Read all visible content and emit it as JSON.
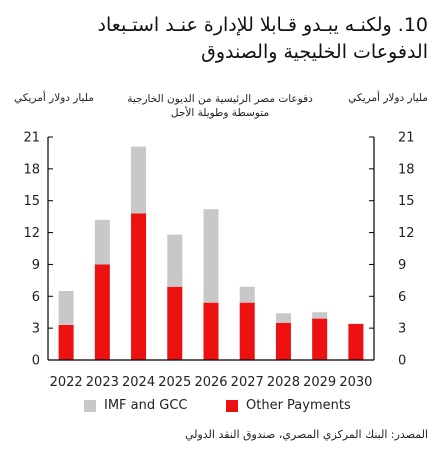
{
  "title": {
    "line1": "10. ولكنـه يبـدو قـابلا للإدارة عنـد استـبعاد",
    "line2": "الدفوعات الخليجية والصندوق"
  },
  "subtitle": {
    "line1": "دفوعات مصر الرئيسية من الديون الخارجية",
    "line2": "متوسطة وطويلة الأجل"
  },
  "unit_left": "مليار دولار أمريكي",
  "unit_right": "مليار دولار أمريكي",
  "source": "المصدر: البنك المركزي المصري، صندوق النقد الدولي",
  "colors": {
    "imf_gcc": "#c8c8c8",
    "other": "#ee1111",
    "axis": "#000000"
  },
  "chart_data": {
    "type": "bar",
    "stacked": true,
    "categories": [
      "2022",
      "2023",
      "2024",
      "2025",
      "2026",
      "2027",
      "2028",
      "2029",
      "2030"
    ],
    "series": [
      {
        "name": "Other Payments",
        "values": [
          3.3,
          9.0,
          13.8,
          6.9,
          5.4,
          5.4,
          3.5,
          3.9,
          3.4
        ]
      },
      {
        "name": "IMF and GCC",
        "values": [
          3.2,
          4.2,
          6.3,
          4.9,
          8.8,
          1.5,
          0.9,
          0.6,
          0.0
        ]
      }
    ],
    "ylim": [
      0,
      21
    ],
    "yticks": [
      0,
      3,
      6,
      9,
      12,
      15,
      18,
      21
    ],
    "legend": [
      "IMF and GCC",
      "Other Payments"
    ]
  }
}
